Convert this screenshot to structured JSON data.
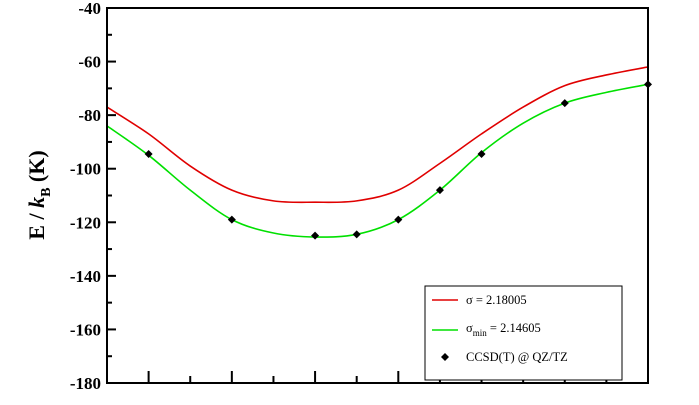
{
  "chart_data": {
    "type": "line",
    "ylabel": {
      "prefix": "E / ",
      "italic_var": "k",
      "subscript": "B",
      "suffix": " (K)"
    },
    "ylim": [
      -180,
      -40
    ],
    "yticks": [
      -180,
      -160,
      -140,
      -120,
      -100,
      -80,
      -60,
      -40
    ],
    "xlim": [
      0,
      13
    ],
    "xticks_major": [
      1,
      3,
      5,
      7,
      9,
      11,
      13
    ],
    "x_tick_labels_visible": false,
    "grid": false,
    "legend": {
      "placement": "bottom-right",
      "entries": [
        {
          "series_index": 0,
          "label": "σ = 2.18005"
        },
        {
          "series_index": 1,
          "label_parts": [
            "σ",
            "min",
            " = 2.14605"
          ]
        },
        {
          "series_index": 2,
          "label": "CCSD(T) @ QZ/TZ"
        }
      ]
    },
    "series": [
      {
        "name": "σ = 2.18005",
        "style": "line",
        "color": "#e00000",
        "x": [
          0,
          1,
          2,
          3,
          4,
          5,
          6,
          7,
          8,
          9,
          10,
          11,
          12,
          13
        ],
        "y": [
          -77,
          -87,
          -99,
          -108,
          -112,
          -112.5,
          -112,
          -108,
          -98,
          -87,
          -77,
          -69,
          -65,
          -62
        ]
      },
      {
        "name": "σ_min = 2.14605",
        "style": "line",
        "color": "#00e000",
        "x": [
          0,
          1,
          2,
          3,
          4,
          5,
          6,
          7,
          8,
          9,
          10,
          11,
          12,
          13
        ],
        "y": [
          -84,
          -95,
          -108,
          -119,
          -124,
          -125.5,
          -124.5,
          -119,
          -108,
          -94,
          -83,
          -75.5,
          -71.5,
          -68.5
        ]
      },
      {
        "name": "CCSD(T) @ QZ/TZ",
        "style": "scatter",
        "marker": "diamond",
        "color": "#000000",
        "x": [
          1,
          3,
          5,
          6,
          7,
          8,
          9,
          11,
          13
        ],
        "y": [
          -94.5,
          -119,
          -125,
          -124.5,
          -119,
          -108,
          -94.5,
          -75.5,
          -68.5
        ]
      }
    ]
  }
}
